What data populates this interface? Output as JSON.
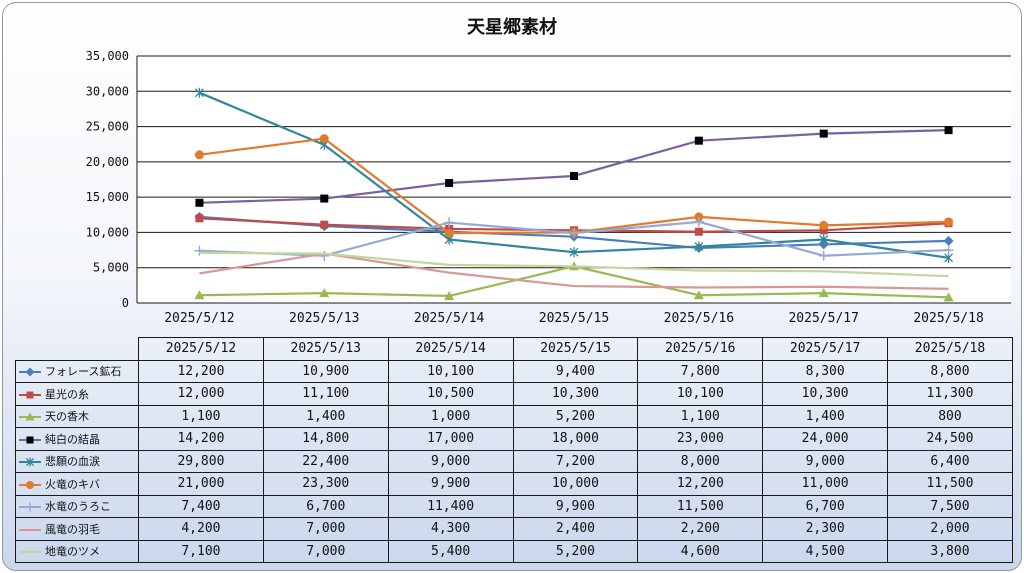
{
  "chart_data": {
    "type": "line",
    "title": "天星郷素材",
    "categories": [
      "2025/5/12",
      "2025/5/13",
      "2025/5/14",
      "2025/5/15",
      "2025/5/16",
      "2025/5/17",
      "2025/5/18"
    ],
    "ylim": [
      0,
      35000
    ],
    "yticks": [
      "0",
      "5,000",
      "10,000",
      "15,000",
      "20,000",
      "25,000",
      "30,000",
      "35,000"
    ],
    "grid": true,
    "legend": "data-table-below",
    "series": [
      {
        "name": "フォレース鉱石",
        "color": "#4a7ebb",
        "marker": "diamond",
        "values": [
          12200,
          10900,
          10100,
          9400,
          7800,
          8300,
          8800
        ],
        "labels": [
          "12,200",
          "10,900",
          "10,100",
          "9,400",
          "7,800",
          "8,300",
          "8,800"
        ]
      },
      {
        "name": "星光の糸",
        "color": "#be4b48",
        "marker": "square",
        "values": [
          12000,
          11100,
          10500,
          10300,
          10100,
          10300,
          11300
        ],
        "labels": [
          "12,000",
          "11,100",
          "10,500",
          "10,300",
          "10,100",
          "10,300",
          "11,300"
        ]
      },
      {
        "name": "天の香木",
        "color": "#98b954",
        "marker": "triangle",
        "values": [
          1100,
          1400,
          1000,
          5200,
          1100,
          1400,
          800
        ],
        "labels": [
          "1,100",
          "1,400",
          "1,000",
          "5,200",
          "1,100",
          "1,400",
          "800"
        ]
      },
      {
        "name": "純白の結晶",
        "color": "#7d60a0",
        "marker": "blacksquare",
        "values": [
          14200,
          14800,
          17000,
          18000,
          23000,
          24000,
          24500
        ],
        "labels": [
          "14,200",
          "14,800",
          "17,000",
          "18,000",
          "23,000",
          "24,000",
          "24,500"
        ]
      },
      {
        "name": "悲願の血涙",
        "color": "#31859c",
        "marker": "star",
        "values": [
          29800,
          22400,
          9000,
          7200,
          8000,
          9000,
          6400
        ],
        "labels": [
          "29,800",
          "22,400",
          "9,000",
          "7,200",
          "8,000",
          "9,000",
          "6,400"
        ]
      },
      {
        "name": "火竜のキバ",
        "color": "#e07b2c",
        "marker": "circle",
        "values": [
          21000,
          23300,
          9900,
          10000,
          12200,
          11000,
          11500
        ],
        "labels": [
          "21,000",
          "23,300",
          "9,900",
          "10,000",
          "12,200",
          "11,000",
          "11,500"
        ]
      },
      {
        "name": "水竜のうろこ",
        "color": "#95a9d4",
        "marker": "plus",
        "values": [
          7400,
          6700,
          11400,
          9900,
          11500,
          6700,
          7500
        ],
        "labels": [
          "7,400",
          "6,700",
          "11,400",
          "9,900",
          "11,500",
          "6,700",
          "7,500"
        ]
      },
      {
        "name": "風竜の羽毛",
        "color": "#d99795",
        "marker": "none",
        "values": [
          4200,
          7000,
          4300,
          2400,
          2200,
          2300,
          2000
        ],
        "labels": [
          "4,200",
          "7,000",
          "4,300",
          "2,400",
          "2,200",
          "2,300",
          "2,000"
        ]
      },
      {
        "name": "地竜のツメ",
        "color": "#c3d69b",
        "marker": "none",
        "values": [
          7100,
          7000,
          5400,
          5200,
          4600,
          4500,
          3800
        ],
        "labels": [
          "7,100",
          "7,000",
          "5,400",
          "5,200",
          "4,600",
          "4,500",
          "3,800"
        ]
      }
    ]
  }
}
